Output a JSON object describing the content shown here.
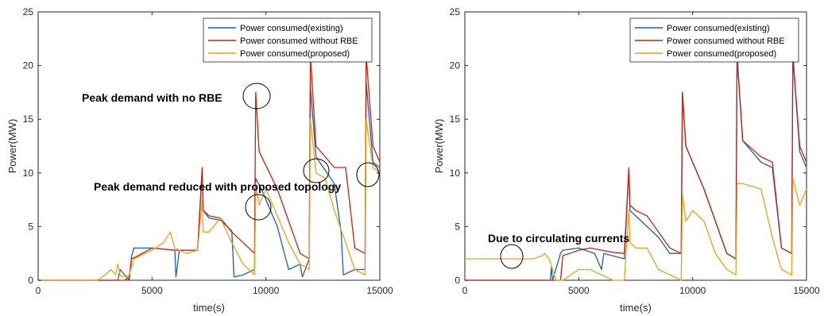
{
  "colors": {
    "existing": "#1f5fa8",
    "without_rbe": "#c0250f",
    "proposed": "#e8a21a",
    "axis": "#262626"
  },
  "chart_data": [
    {
      "type": "line",
      "xlabel": "time(s)",
      "ylabel": "Power(MW)",
      "xlim": [
        0,
        15000
      ],
      "ylim": [
        0,
        25
      ],
      "xticks": [
        "0",
        "5000",
        "10000",
        "15000"
      ],
      "yticks": [
        "0",
        "5",
        "10",
        "15",
        "20",
        "25"
      ],
      "legend": [
        "Power consumed(existing)",
        "Power consumed without RBE",
        "Power consumed(proposed)"
      ],
      "legend_position": "top-right",
      "series": [
        {
          "name": "Power consumed(existing)",
          "x": [
            0,
            3500,
            3600,
            4000,
            4100,
            4200,
            5000,
            6000,
            6050,
            6200,
            7000,
            7200,
            7250,
            7500,
            8000,
            8500,
            8600,
            9000,
            9500,
            9550,
            9800,
            10500,
            11000,
            11500,
            11600,
            11900,
            11950,
            12200,
            13000,
            13300,
            13400,
            13900,
            14350,
            14400,
            14700,
            15000
          ],
          "y": [
            0,
            0,
            1.0,
            0,
            2.2,
            3.0,
            3.0,
            2.8,
            0.3,
            2.8,
            2.8,
            10.3,
            6.5,
            5.8,
            5.6,
            4.6,
            0.3,
            0.5,
            1.0,
            9.5,
            8.5,
            5.0,
            1.0,
            1.5,
            0.3,
            2.0,
            18.0,
            11.5,
            9.0,
            4.5,
            0.5,
            1.0,
            1.0,
            18.5,
            11.0,
            10.5
          ]
        },
        {
          "name": "Power consumed without RBE",
          "x": [
            0,
            3800,
            4000,
            4100,
            4300,
            5000,
            6000,
            6200,
            7000,
            7200,
            7250,
            7500,
            8000,
            8500,
            9000,
            9500,
            9550,
            9700,
            10500,
            11000,
            11500,
            11900,
            11950,
            12200,
            13000,
            13500,
            13900,
            14350,
            14400,
            14700,
            15000
          ],
          "y": [
            0,
            0,
            0.3,
            2.0,
            2.2,
            3.0,
            2.8,
            2.8,
            2.8,
            10.5,
            6.5,
            6.0,
            5.8,
            4.5,
            3.5,
            2.5,
            17.5,
            12.0,
            8.5,
            5.5,
            2.5,
            2.0,
            21.0,
            12.5,
            10.5,
            10.5,
            3.0,
            2.5,
            21.0,
            12.5,
            11.0
          ]
        },
        {
          "name": "Power consumed(proposed)",
          "x": [
            0,
            2600,
            3000,
            3200,
            3400,
            3500,
            3600,
            3700,
            4000,
            4200,
            5000,
            5500,
            5800,
            6000,
            6500,
            7000,
            7200,
            7250,
            7500,
            8000,
            8500,
            9000,
            9500,
            9550,
            9700,
            10000,
            10500,
            11000,
            11500,
            11900,
            11950,
            12200,
            12600,
            13000,
            13500,
            13900,
            14350,
            14400,
            14700,
            15000
          ],
          "y": [
            0,
            0,
            0.6,
            1.0,
            0.5,
            1.5,
            0.5,
            0.3,
            0.5,
            2.0,
            2.8,
            3.5,
            4.5,
            3.0,
            2.5,
            2.8,
            7.5,
            4.5,
            4.5,
            5.8,
            3.5,
            1.5,
            0.5,
            9.0,
            7.0,
            8.5,
            6.0,
            3.5,
            1.5,
            1.0,
            15.0,
            10.0,
            9.5,
            6.5,
            3.5,
            1.0,
            0.5,
            15.0,
            10.5,
            10.0
          ]
        }
      ],
      "annotations": [
        "Peak demand with no RBE",
        "Peak demand reduced with proposed topology"
      ]
    },
    {
      "type": "line",
      "xlabel": "time(s)",
      "ylabel": "Power(MW)",
      "xlim": [
        0,
        15000
      ],
      "ylim": [
        0,
        25
      ],
      "xticks": [
        "0",
        "5000",
        "10000",
        "15000"
      ],
      "yticks": [
        "0",
        "5",
        "10",
        "15",
        "20",
        "25"
      ],
      "legend": [
        "Power consumed(existing)",
        "Power consumed without RBE",
        "Power consumed(proposed)"
      ],
      "legend_position": "top-right",
      "series": [
        {
          "name": "Power consumed(existing)",
          "x": [
            0,
            3750,
            3800,
            3850,
            4200,
            4300,
            5000,
            5700,
            6000,
            6100,
            7000,
            7200,
            7250,
            7500,
            8000,
            8500,
            9000,
            9500,
            9550,
            9700,
            10500,
            11000,
            11500,
            11900,
            11950,
            12200,
            13000,
            13500,
            13900,
            14350,
            14400,
            14700,
            15000
          ],
          "y": [
            0,
            0,
            1.2,
            0,
            2.5,
            2.8,
            3.0,
            2.5,
            1.0,
            2.5,
            2.0,
            10.3,
            6.5,
            6.0,
            5.0,
            4.0,
            2.5,
            2.5,
            17.5,
            12.5,
            8.5,
            5.5,
            2.5,
            2.0,
            20.8,
            13.0,
            11.0,
            10.5,
            3.0,
            2.5,
            21.0,
            12.0,
            10.5
          ]
        },
        {
          "name": "Power consumed without RBE",
          "x": [
            0,
            4200,
            4300,
            4600,
            5000,
            5500,
            6000,
            6500,
            7000,
            7200,
            7250,
            7500,
            8000,
            8500,
            9000,
            9500,
            9550,
            9700,
            10500,
            11000,
            11500,
            11900,
            11950,
            12200,
            13000,
            13500,
            13900,
            14350,
            14400,
            14700,
            15000
          ],
          "y": [
            0,
            0,
            2.3,
            2.5,
            2.8,
            3.0,
            2.8,
            2.6,
            2.5,
            10.5,
            7.0,
            6.5,
            6.0,
            4.5,
            3.0,
            2.5,
            17.5,
            12.5,
            8.5,
            5.5,
            2.5,
            2.0,
            21.0,
            13.0,
            11.5,
            11.0,
            3.0,
            2.5,
            21.0,
            12.5,
            11.0
          ]
        },
        {
          "name": "Power consumed(proposed)",
          "x": [
            0,
            3000,
            3400,
            3500,
            3700,
            4000,
            4300,
            5000,
            5500,
            6000,
            6500,
            7000,
            7200,
            7250,
            7500,
            8000,
            8500,
            9000,
            9500,
            9550,
            9700,
            10000,
            10500,
            11000,
            11500,
            11900,
            11950,
            12200,
            13000,
            13500,
            13900,
            14350,
            14400,
            14700,
            15000
          ],
          "y": [
            2.0,
            2.0,
            2.3,
            2.5,
            2.0,
            0,
            0,
            1.0,
            1.0,
            0.5,
            0,
            0,
            6.5,
            3.5,
            3.0,
            3.0,
            1.0,
            0.5,
            0,
            8.0,
            5.5,
            6.5,
            5.5,
            2.5,
            1.0,
            0.5,
            9.0,
            9.0,
            8.5,
            4.0,
            1.0,
            0.5,
            9.5,
            7.0,
            8.5
          ]
        }
      ],
      "annotations": [
        "Due to circulating currents"
      ]
    }
  ]
}
